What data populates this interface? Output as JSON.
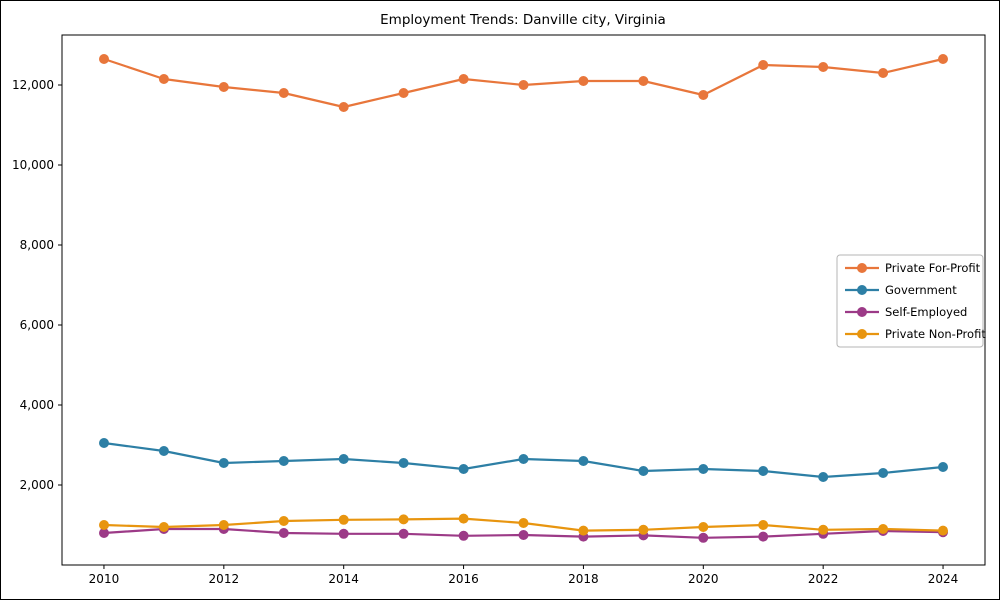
{
  "title": "Employment Trends: Danville city, Virginia",
  "chart_data": {
    "type": "line",
    "title": "Employment Trends: Danville city, Virginia",
    "xlabel": "",
    "ylabel": "",
    "x": [
      2010,
      2011,
      2012,
      2013,
      2014,
      2015,
      2016,
      2017,
      2018,
      2019,
      2020,
      2021,
      2022,
      2023,
      2024
    ],
    "series": [
      {
        "name": "Private For-Profit",
        "color": "#e8763b",
        "values": [
          12650,
          12150,
          11950,
          11800,
          11450,
          11800,
          12150,
          12000,
          12100,
          12100,
          11750,
          12500,
          12450,
          12300,
          12650
        ]
      },
      {
        "name": "Government",
        "color": "#2d7fa5",
        "values": [
          3050,
          2850,
          2550,
          2600,
          2650,
          2550,
          2400,
          2650,
          2600,
          2350,
          2400,
          2350,
          2200,
          2300,
          2450
        ]
      },
      {
        "name": "Self-Employed",
        "color": "#9c3a87",
        "values": [
          800,
          900,
          900,
          800,
          780,
          780,
          730,
          750,
          710,
          740,
          680,
          710,
          780,
          850,
          820
        ]
      },
      {
        "name": "Private Non-Profit",
        "color": "#e8950f",
        "values": [
          1000,
          950,
          1000,
          1100,
          1130,
          1140,
          1160,
          1050,
          860,
          880,
          950,
          1000,
          880,
          900,
          860
        ]
      }
    ],
    "xlim": [
      2009.3,
      2024.7
    ],
    "ylim": [
      0,
      13250
    ],
    "x_ticks": [
      2010,
      2012,
      2014,
      2016,
      2018,
      2020,
      2022,
      2024
    ],
    "y_ticks": [
      2000,
      4000,
      6000,
      8000,
      10000,
      12000
    ],
    "y_tick_labels": [
      "2,000",
      "4,000",
      "6,000",
      "8,000",
      "10,000",
      "12,000"
    ],
    "grid": false,
    "legend_position": "center right",
    "axis_color": "#000000",
    "background_color": "#ffffff"
  }
}
